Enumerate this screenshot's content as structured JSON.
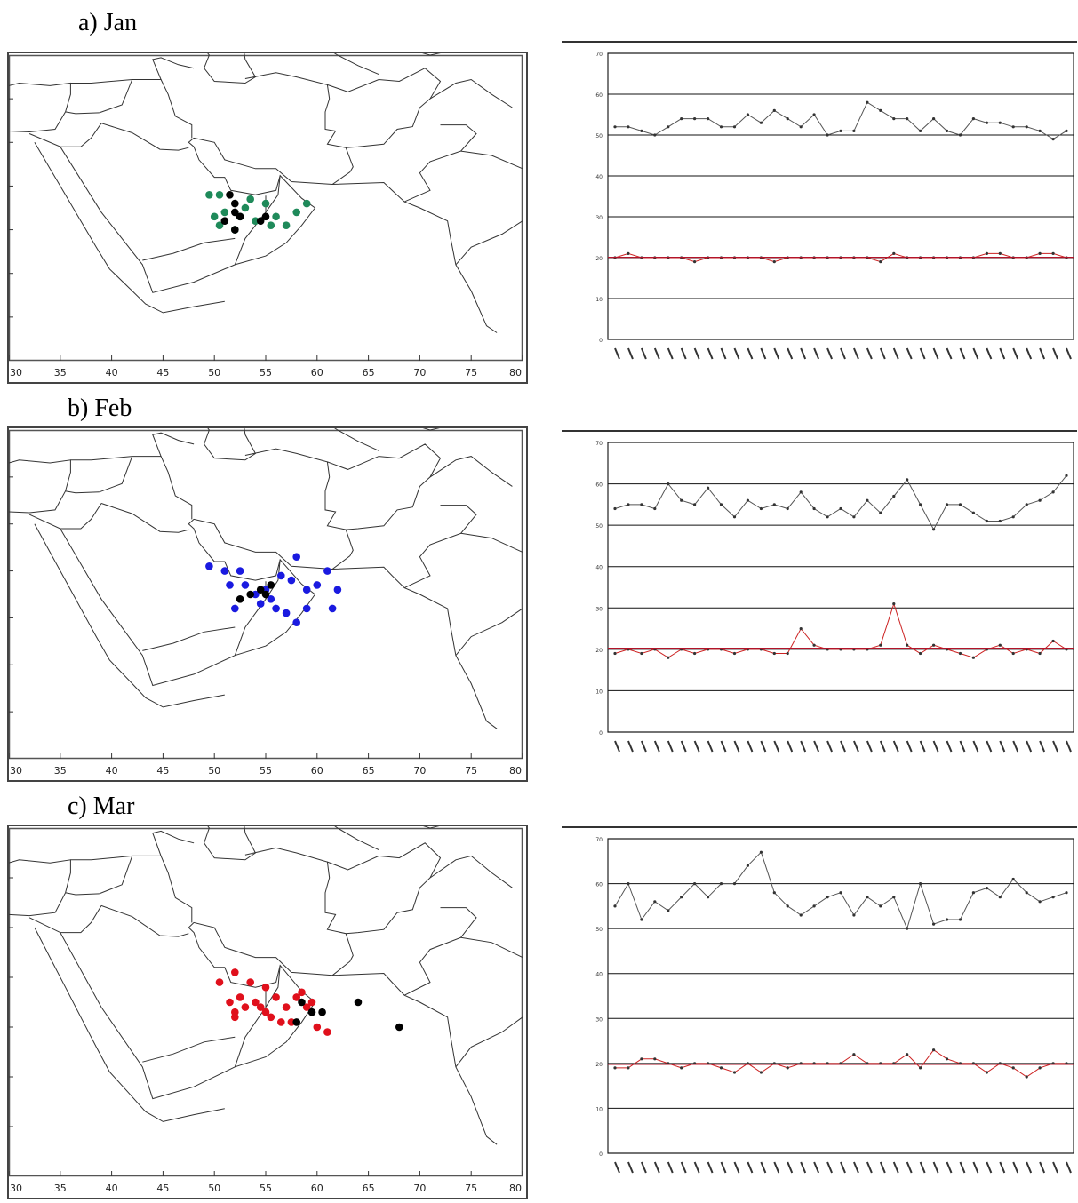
{
  "figure": {
    "panels": [
      {
        "label": "a) Jan"
      },
      {
        "label": "b) Feb"
      },
      {
        "label": "c) Mar"
      }
    ],
    "map_x_ticks": [
      "30",
      "35",
      "40",
      "45",
      "50",
      "55",
      "60",
      "65",
      "70",
      "75",
      "80"
    ],
    "ts_y_ticks": [
      "0",
      "10",
      "20",
      "30",
      "40",
      "50",
      "60",
      "70"
    ]
  },
  "chart_data": [
    {
      "type": "scatter",
      "title": "a) Jan",
      "xlabel": "",
      "ylabel": "",
      "xlim": [
        30,
        80
      ],
      "ylim": [
        5,
        40
      ],
      "colors": {
        "ring_points": "#1f8a5a",
        "center_points": "#000000"
      },
      "series": [
        {
          "color": "#1f8a5a",
          "x": [
            49.5,
            50.5,
            50.0,
            51.0,
            52.5,
            53.0,
            54.0,
            55.0,
            56.0,
            57.0,
            58.0,
            59.0,
            50.5,
            52.0,
            53.5,
            55.5
          ],
          "y": [
            24.0,
            24.0,
            21.5,
            22.0,
            21.5,
            22.5,
            21.0,
            23.0,
            21.5,
            20.5,
            22.0,
            23.0,
            20.5,
            20.0,
            23.5,
            20.5
          ]
        },
        {
          "color": "#000000",
          "x": [
            51.5,
            52.0,
            52.0,
            52.5,
            51.0,
            55.0,
            54.5,
            52.0
          ],
          "y": [
            24.0,
            23.0,
            22.0,
            21.5,
            21.0,
            21.5,
            21.0,
            20.0
          ]
        }
      ]
    },
    {
      "type": "line",
      "title": "a) Jan",
      "xlabel": "",
      "ylabel": "",
      "ylim": [
        0,
        70
      ],
      "series": [
        {
          "color": "#555555",
          "values": [
            52,
            52,
            51,
            50,
            52,
            54,
            54,
            54,
            52,
            52,
            55,
            53,
            56,
            54,
            52,
            55,
            50,
            51,
            51,
            58,
            56,
            54,
            54,
            51,
            54,
            51,
            50,
            54,
            53,
            53,
            52,
            52,
            51,
            49,
            51
          ]
        },
        {
          "color": "#cc2222",
          "values": [
            20,
            21,
            20,
            20,
            20,
            20,
            19,
            20,
            20,
            20,
            20,
            20,
            19,
            20,
            20,
            20,
            20,
            20,
            20,
            20,
            19,
            21,
            20,
            20,
            20,
            20,
            20,
            20,
            21,
            21,
            20,
            20,
            21,
            21,
            20
          ]
        }
      ]
    },
    {
      "type": "scatter",
      "title": "b) Feb",
      "xlabel": "",
      "ylabel": "",
      "xlim": [
        30,
        80
      ],
      "ylim": [
        5,
        40
      ],
      "colors": {
        "ring_points": "#1a1ae0",
        "center_points": "#000000"
      },
      "series": [
        {
          "color": "#1a1ae0",
          "x": [
            49.5,
            51.0,
            52.5,
            53.0,
            54.0,
            55.0,
            56.5,
            57.5,
            58.0,
            59.0,
            60.0,
            61.0,
            61.5,
            62.0,
            59.0,
            58.0,
            56.0,
            54.5,
            52.0,
            51.5,
            55.5,
            57.0
          ],
          "y": [
            25.5,
            25.0,
            25.0,
            23.5,
            22.5,
            23.0,
            24.5,
            24.0,
            26.5,
            23.0,
            23.5,
            25.0,
            21.0,
            23.0,
            21.0,
            19.5,
            21.0,
            21.5,
            21.0,
            23.5,
            22.0,
            20.5
          ]
        },
        {
          "color": "#000000",
          "x": [
            52.5,
            53.5,
            55.0,
            54.5,
            55.5
          ],
          "y": [
            22.0,
            22.5,
            22.5,
            23.0,
            23.5
          ]
        }
      ]
    },
    {
      "type": "line",
      "title": "b) Feb",
      "xlabel": "",
      "ylabel": "",
      "ylim": [
        0,
        70
      ],
      "series": [
        {
          "color": "#555555",
          "values": [
            54,
            55,
            55,
            54,
            60,
            56,
            55,
            59,
            55,
            52,
            56,
            54,
            55,
            54,
            58,
            54,
            52,
            54,
            52,
            56,
            53,
            57,
            61,
            55,
            49,
            55,
            55,
            53,
            51,
            51,
            52,
            55,
            56,
            58,
            62
          ]
        },
        {
          "color": "#cc2222",
          "values": [
            19,
            20,
            19,
            20,
            18,
            20,
            19,
            20,
            20,
            19,
            20,
            20,
            19,
            19,
            25,
            21,
            20,
            20,
            20,
            20,
            21,
            31,
            21,
            19,
            21,
            20,
            19,
            18,
            20,
            21,
            19,
            20,
            19,
            22,
            20
          ]
        }
      ]
    },
    {
      "type": "scatter",
      "title": "c) Mar",
      "xlabel": "",
      "ylabel": "",
      "xlim": [
        30,
        80
      ],
      "ylim": [
        5,
        40
      ],
      "colors": {
        "ring_points": "#e0101c",
        "center_points": "#000000"
      },
      "series": [
        {
          "color": "#e0101c",
          "x": [
            50.5,
            52.0,
            53.5,
            55.0,
            52.5,
            51.5,
            52.0,
            53.0,
            54.0,
            55.0,
            56.0,
            57.0,
            58.0,
            59.0,
            60.0,
            61.0,
            55.5,
            56.5,
            58.5,
            52.0,
            54.5,
            57.5,
            59.5
          ],
          "y": [
            24.5,
            25.5,
            24.5,
            24.0,
            23.0,
            22.5,
            21.5,
            22.0,
            22.5,
            21.5,
            23.0,
            22.0,
            23.0,
            22.0,
            20.0,
            19.5,
            21.0,
            20.5,
            23.5,
            21.0,
            22.0,
            20.5,
            22.5
          ]
        },
        {
          "color": "#000000",
          "x": [
            58.5,
            59.5,
            60.5,
            58.0,
            64.0,
            68.0
          ],
          "y": [
            22.5,
            21.5,
            21.5,
            20.5,
            22.5,
            20.0
          ]
        }
      ]
    },
    {
      "type": "line",
      "title": "c) Mar",
      "xlabel": "",
      "ylabel": "",
      "ylim": [
        0,
        70
      ],
      "series": [
        {
          "color": "#555555",
          "values": [
            55,
            60,
            52,
            56,
            54,
            57,
            60,
            57,
            60,
            60,
            64,
            67,
            58,
            55,
            53,
            55,
            57,
            58,
            53,
            57,
            55,
            57,
            50,
            60,
            51,
            52,
            52,
            58,
            59,
            57,
            61,
            58,
            56,
            57,
            58
          ]
        },
        {
          "color": "#cc2222",
          "values": [
            19,
            19,
            21,
            21,
            20,
            19,
            20,
            20,
            19,
            18,
            20,
            18,
            20,
            19,
            20,
            20,
            20,
            20,
            22,
            20,
            20,
            20,
            22,
            19,
            23,
            21,
            20,
            20,
            18,
            20,
            19,
            17,
            19,
            20,
            20
          ]
        }
      ]
    }
  ]
}
